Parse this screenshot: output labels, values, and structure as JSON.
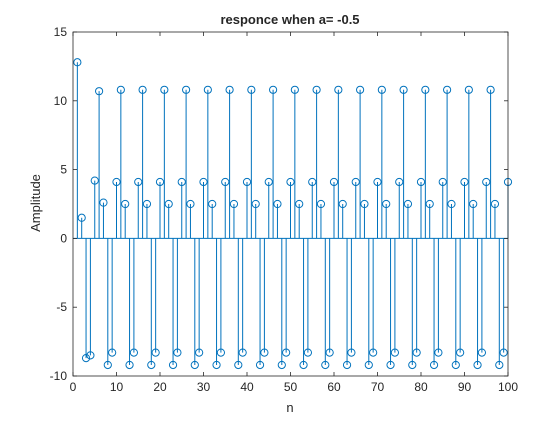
{
  "chart_data": {
    "type": "stem",
    "title": "responce when a= -0.5",
    "xlabel": "n",
    "ylabel": "Amplitude",
    "xlim": [
      0,
      100
    ],
    "ylim": [
      -10,
      15
    ],
    "xticks": [
      0,
      10,
      20,
      30,
      40,
      50,
      60,
      70,
      80,
      90,
      100
    ],
    "yticks": [
      -10,
      -5,
      0,
      5,
      10,
      15
    ],
    "grid": false,
    "color": "#0072BD",
    "x": [
      1,
      2,
      3,
      4,
      5,
      6,
      7,
      8,
      9,
      10,
      11,
      12,
      13,
      14,
      15,
      16,
      17,
      18,
      19,
      20,
      21,
      22,
      23,
      24,
      25,
      26,
      27,
      28,
      29,
      30,
      31,
      32,
      33,
      34,
      35,
      36,
      37,
      38,
      39,
      40,
      41,
      42,
      43,
      44,
      45,
      46,
      47,
      48,
      49,
      50,
      51,
      52,
      53,
      54,
      55,
      56,
      57,
      58,
      59,
      60,
      61,
      62,
      63,
      64,
      65,
      66,
      67,
      68,
      69,
      70,
      71,
      72,
      73,
      74,
      75,
      76,
      77,
      78,
      79,
      80,
      81,
      82,
      83,
      84,
      85,
      86,
      87,
      88,
      89,
      90,
      91,
      92,
      93,
      94,
      95,
      96,
      97,
      98,
      99,
      100
    ],
    "y": [
      12.8,
      1.5,
      -8.7,
      -8.5,
      4.2,
      10.7,
      2.6,
      -9.2,
      -8.3,
      4.1,
      10.8,
      2.5,
      -9.2,
      -8.3,
      4.1,
      10.8,
      2.5,
      -9.2,
      -8.3,
      4.1,
      10.8,
      2.5,
      -9.2,
      -8.3,
      4.1,
      10.8,
      2.5,
      -9.2,
      -8.3,
      4.1,
      10.8,
      2.5,
      -9.2,
      -8.3,
      4.1,
      10.8,
      2.5,
      -9.2,
      -8.3,
      4.1,
      10.8,
      2.5,
      -9.2,
      -8.3,
      4.1,
      10.8,
      2.5,
      -9.2,
      -8.3,
      4.1,
      10.8,
      2.5,
      -9.2,
      -8.3,
      4.1,
      10.8,
      2.5,
      -9.2,
      -8.3,
      4.1,
      10.8,
      2.5,
      -9.2,
      -8.3,
      4.1,
      10.8,
      2.5,
      -9.2,
      -8.3,
      4.1,
      10.8,
      2.5,
      -9.2,
      -8.3,
      4.1,
      10.8,
      2.5,
      -9.2,
      -8.3,
      4.1,
      10.8,
      2.5,
      -9.2,
      -8.3,
      4.1,
      10.8,
      2.5,
      -9.2,
      -8.3,
      4.1,
      10.8,
      2.5,
      -9.2,
      -8.3,
      4.1,
      10.8,
      2.5,
      -9.2,
      -8.3,
      4.1
    ]
  }
}
